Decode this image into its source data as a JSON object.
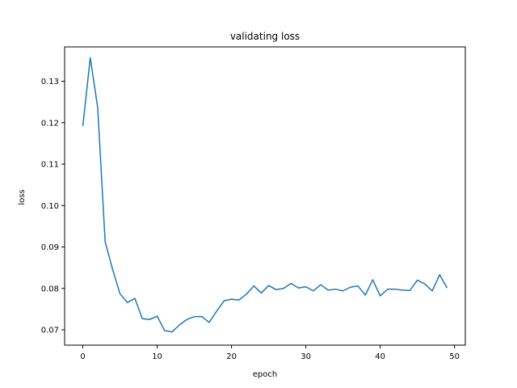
{
  "chart_data": {
    "type": "line",
    "title": "validating loss",
    "xlabel": "epoch",
    "ylabel": "loss",
    "xlim": [
      -2.45,
      51.45
    ],
    "ylim": [
      0.0663,
      0.1383
    ],
    "xticks": [
      0,
      10,
      20,
      30,
      40,
      50
    ],
    "xtick_labels": [
      "0",
      "10",
      "20",
      "30",
      "40",
      "50"
    ],
    "yticks": [
      0.07,
      0.08,
      0.09,
      0.1,
      0.11,
      0.12,
      0.13
    ],
    "ytick_labels": [
      "0.07",
      "0.08",
      "0.09",
      "0.10",
      "0.11",
      "0.12",
      "0.13"
    ],
    "grid": false,
    "legend": false,
    "color": "#1f77b4",
    "series": [
      {
        "x": [
          0,
          1,
          2,
          3,
          4,
          5,
          6,
          7,
          8,
          9,
          10,
          11,
          12,
          13,
          14,
          15,
          16,
          17,
          18,
          19,
          20,
          21,
          22,
          23,
          24,
          25,
          26,
          27,
          28,
          29,
          30,
          31,
          32,
          33,
          34,
          35,
          36,
          37,
          38,
          39,
          40,
          41,
          42,
          43,
          44,
          45,
          46,
          47,
          48,
          49
        ],
        "values": [
          0.1192,
          0.1357,
          0.1236,
          0.0913,
          0.0846,
          0.0787,
          0.0766,
          0.0776,
          0.0727,
          0.0725,
          0.0733,
          0.0698,
          0.0695,
          0.0712,
          0.0725,
          0.0732,
          0.0732,
          0.0718,
          0.0745,
          0.077,
          0.0774,
          0.0772,
          0.0786,
          0.0806,
          0.0789,
          0.0807,
          0.0797,
          0.08,
          0.0812,
          0.0801,
          0.0804,
          0.0794,
          0.0809,
          0.0796,
          0.0798,
          0.0794,
          0.0803,
          0.0806,
          0.0784,
          0.0821,
          0.0782,
          0.0798,
          0.0798,
          0.0796,
          0.0795,
          0.082,
          0.0811,
          0.0794,
          0.0833,
          0.0801
        ]
      }
    ]
  }
}
